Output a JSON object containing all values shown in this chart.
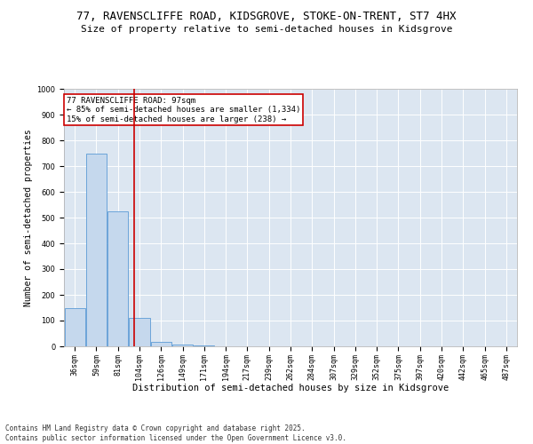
{
  "title_line1": "77, RAVENSCLIFFE ROAD, KIDSGROVE, STOKE-ON-TRENT, ST7 4HX",
  "title_line2": "Size of property relative to semi-detached houses in Kidsgrove",
  "xlabel": "Distribution of semi-detached houses by size in Kidsgrove",
  "ylabel": "Number of semi-detached properties",
  "categories": [
    "36sqm",
    "59sqm",
    "81sqm",
    "104sqm",
    "126sqm",
    "149sqm",
    "171sqm",
    "194sqm",
    "217sqm",
    "239sqm",
    "262sqm",
    "284sqm",
    "307sqm",
    "329sqm",
    "352sqm",
    "375sqm",
    "397sqm",
    "420sqm",
    "442sqm",
    "465sqm",
    "487sqm"
  ],
  "values": [
    150,
    750,
    525,
    110,
    18,
    8,
    3,
    0,
    0,
    0,
    0,
    0,
    0,
    0,
    0,
    0,
    0,
    0,
    0,
    0,
    0
  ],
  "bar_color": "#c5d8ed",
  "bar_edge_color": "#5b9bd5",
  "property_line_x": 2.75,
  "annotation_text": "77 RAVENSCLIFFE ROAD: 97sqm\n← 85% of semi-detached houses are smaller (1,334)\n15% of semi-detached houses are larger (238) →",
  "annotation_box_color": "#ffffff",
  "annotation_box_edge_color": "#cc0000",
  "line_color": "#cc0000",
  "ylim": [
    0,
    1000
  ],
  "yticks": [
    0,
    100,
    200,
    300,
    400,
    500,
    600,
    700,
    800,
    900,
    1000
  ],
  "background_color": "#dce6f1",
  "footer_text": "Contains HM Land Registry data © Crown copyright and database right 2025.\nContains public sector information licensed under the Open Government Licence v3.0.",
  "title_fontsize": 9,
  "subtitle_fontsize": 8,
  "annotation_fontsize": 6.5,
  "tick_fontsize": 6,
  "ylabel_fontsize": 7,
  "xlabel_fontsize": 7.5,
  "footer_fontsize": 5.5
}
